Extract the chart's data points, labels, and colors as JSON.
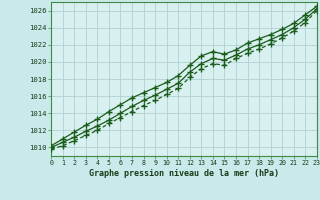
{
  "title": "Graphe pression niveau de la mer (hPa)",
  "bg_color": "#c8eaea",
  "grid_color": "#b0d0d0",
  "line_color": "#1a5c1a",
  "x_values": [
    0,
    1,
    2,
    3,
    4,
    5,
    6,
    7,
    8,
    9,
    10,
    11,
    12,
    13,
    14,
    15,
    16,
    17,
    18,
    19,
    20,
    21,
    22,
    23
  ],
  "line_main": [
    1010.0,
    1010.6,
    1011.2,
    1011.9,
    1012.5,
    1013.2,
    1014.0,
    1014.8,
    1015.5,
    1016.1,
    1016.8,
    1017.5,
    1018.8,
    1019.8,
    1020.4,
    1020.2,
    1020.8,
    1021.5,
    1022.0,
    1022.6,
    1023.2,
    1024.0,
    1025.0,
    1026.2
  ],
  "line_upper": [
    1010.2,
    1011.0,
    1011.8,
    1012.6,
    1013.3,
    1014.2,
    1015.0,
    1015.8,
    1016.4,
    1017.0,
    1017.6,
    1018.4,
    1019.6,
    1020.7,
    1021.2,
    1020.9,
    1021.4,
    1022.2,
    1022.7,
    1023.2,
    1023.8,
    1024.5,
    1025.5,
    1026.5
  ],
  "line_lower": [
    1009.8,
    1010.2,
    1010.8,
    1011.4,
    1012.0,
    1012.8,
    1013.5,
    1014.2,
    1014.9,
    1015.5,
    1016.2,
    1016.9,
    1018.2,
    1019.2,
    1019.8,
    1019.6,
    1020.4,
    1021.0,
    1021.5,
    1022.1,
    1022.8,
    1023.6,
    1024.6,
    1026.0
  ],
  "ylim": [
    1009,
    1027
  ],
  "yticks": [
    1010,
    1012,
    1014,
    1016,
    1018,
    1020,
    1022,
    1024,
    1026
  ],
  "xlim": [
    0,
    23
  ],
  "xticks": [
    0,
    1,
    2,
    3,
    4,
    5,
    6,
    7,
    8,
    9,
    10,
    11,
    12,
    13,
    14,
    15,
    16,
    17,
    18,
    19,
    20,
    21,
    22,
    23
  ],
  "plot_bg": "#d8f0f0",
  "spine_color": "#448844"
}
